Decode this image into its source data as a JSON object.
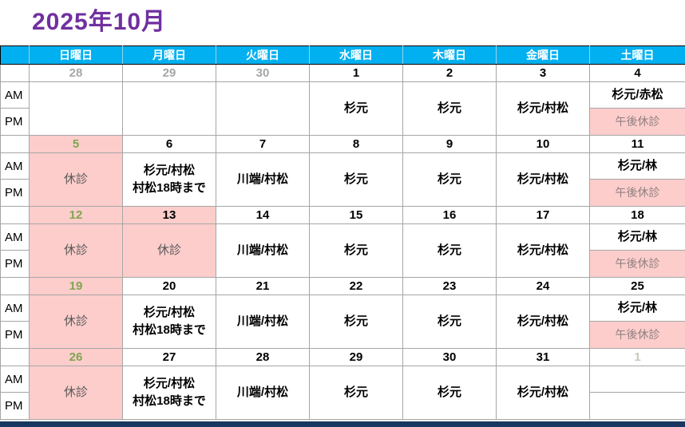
{
  "title": "2025年10月",
  "weekday_headers": [
    "日曜日",
    "月曜日",
    "火曜日",
    "水曜日",
    "木曜日",
    "金曜日",
    "土曜日"
  ],
  "row_labels": {
    "am": "AM",
    "pm": "PM"
  },
  "colors": {
    "title_color": "#7030A0",
    "header_bg": "#00B0F0",
    "header_text": "#FFFFFF",
    "closed_bg": "#FCCDCB",
    "holiday_date": "#7FA650",
    "muted_date": "#A6A6A6",
    "next_month_date": "#C6CBB8",
    "bottom_bar": "#17375E"
  },
  "terms": {
    "closed": "休診",
    "afternoon_closed": "午後休診"
  },
  "weeks": [
    {
      "days": [
        {
          "date": "28",
          "date_style": "muted",
          "body": {
            "type": "merged",
            "lines": []
          }
        },
        {
          "date": "29",
          "date_style": "muted",
          "body": {
            "type": "merged",
            "lines": []
          }
        },
        {
          "date": "30",
          "date_style": "muted",
          "body": {
            "type": "merged",
            "lines": []
          }
        },
        {
          "date": "1",
          "body": {
            "type": "merged",
            "lines": [
              "杉元"
            ]
          }
        },
        {
          "date": "2",
          "body": {
            "type": "merged",
            "lines": [
              "杉元"
            ]
          }
        },
        {
          "date": "3",
          "body": {
            "type": "merged",
            "lines": [
              "杉元/村松"
            ]
          }
        },
        {
          "date": "4",
          "body": {
            "type": "split",
            "am": {
              "lines": [
                "杉元/赤松"
              ]
            },
            "pm": {
              "lines": [
                "午後休診"
              ],
              "bg": "pink",
              "style": "closed-pm"
            }
          }
        }
      ]
    },
    {
      "days": [
        {
          "date": "5",
          "date_style": "holiday",
          "date_bg": "pink",
          "body": {
            "type": "merged",
            "lines": [
              "休診"
            ],
            "bg": "pink",
            "style": "closed"
          }
        },
        {
          "date": "6",
          "body": {
            "type": "merged",
            "lines": [
              "杉元/村松",
              "村松18時まで"
            ]
          }
        },
        {
          "date": "7",
          "body": {
            "type": "merged",
            "lines": [
              "川端/村松"
            ]
          }
        },
        {
          "date": "8",
          "body": {
            "type": "merged",
            "lines": [
              "杉元"
            ]
          }
        },
        {
          "date": "9",
          "body": {
            "type": "merged",
            "lines": [
              "杉元"
            ]
          }
        },
        {
          "date": "10",
          "body": {
            "type": "merged",
            "lines": [
              "杉元/村松"
            ]
          }
        },
        {
          "date": "11",
          "body": {
            "type": "split",
            "am": {
              "lines": [
                "杉元/林"
              ]
            },
            "pm": {
              "lines": [
                "午後休診"
              ],
              "bg": "pink",
              "style": "closed-pm"
            }
          }
        }
      ]
    },
    {
      "days": [
        {
          "date": "12",
          "date_style": "holiday",
          "date_bg": "pink",
          "body": {
            "type": "merged",
            "lines": [
              "休診"
            ],
            "bg": "pink",
            "style": "closed"
          }
        },
        {
          "date": "13",
          "date_bg": "pink",
          "body": {
            "type": "merged",
            "lines": [
              "休診"
            ],
            "bg": "pink",
            "style": "closed"
          }
        },
        {
          "date": "14",
          "body": {
            "type": "merged",
            "lines": [
              "川端/村松"
            ]
          }
        },
        {
          "date": "15",
          "body": {
            "type": "merged",
            "lines": [
              "杉元"
            ]
          }
        },
        {
          "date": "16",
          "body": {
            "type": "merged",
            "lines": [
              "杉元"
            ]
          }
        },
        {
          "date": "17",
          "body": {
            "type": "merged",
            "lines": [
              "杉元/村松"
            ]
          }
        },
        {
          "date": "18",
          "body": {
            "type": "split",
            "am": {
              "lines": [
                "杉元/林"
              ]
            },
            "pm": {
              "lines": [
                "午後休診"
              ],
              "bg": "pink",
              "style": "closed-pm"
            }
          }
        }
      ]
    },
    {
      "days": [
        {
          "date": "19",
          "date_style": "holiday",
          "date_bg": "pink",
          "body": {
            "type": "merged",
            "lines": [
              "休診"
            ],
            "bg": "pink",
            "style": "closed"
          }
        },
        {
          "date": "20",
          "body": {
            "type": "merged",
            "lines": [
              "杉元/村松",
              "村松18時まで"
            ]
          }
        },
        {
          "date": "21",
          "body": {
            "type": "merged",
            "lines": [
              "川端/村松"
            ]
          }
        },
        {
          "date": "22",
          "body": {
            "type": "merged",
            "lines": [
              "杉元"
            ]
          }
        },
        {
          "date": "23",
          "body": {
            "type": "merged",
            "lines": [
              "杉元"
            ]
          }
        },
        {
          "date": "24",
          "body": {
            "type": "merged",
            "lines": [
              "杉元/村松"
            ]
          }
        },
        {
          "date": "25",
          "body": {
            "type": "split",
            "am": {
              "lines": [
                "杉元/林"
              ]
            },
            "pm": {
              "lines": [
                "午後休診"
              ],
              "bg": "pink",
              "style": "closed-pm"
            }
          }
        }
      ]
    },
    {
      "days": [
        {
          "date": "26",
          "date_style": "holiday",
          "date_bg": "pink",
          "body": {
            "type": "merged",
            "lines": [
              "休診"
            ],
            "bg": "pink",
            "style": "closed"
          }
        },
        {
          "date": "27",
          "body": {
            "type": "merged",
            "lines": [
              "杉元/村松",
              "村松18時まで"
            ]
          }
        },
        {
          "date": "28",
          "body": {
            "type": "merged",
            "lines": [
              "川端/村松"
            ]
          }
        },
        {
          "date": "29",
          "body": {
            "type": "merged",
            "lines": [
              "杉元"
            ]
          }
        },
        {
          "date": "30",
          "body": {
            "type": "merged",
            "lines": [
              "杉元"
            ]
          }
        },
        {
          "date": "31",
          "body": {
            "type": "merged",
            "lines": [
              "杉元/村松"
            ]
          }
        },
        {
          "date": "1",
          "date_style": "next",
          "body": {
            "type": "split",
            "am": {
              "lines": []
            },
            "pm": {
              "lines": []
            }
          }
        }
      ]
    }
  ]
}
